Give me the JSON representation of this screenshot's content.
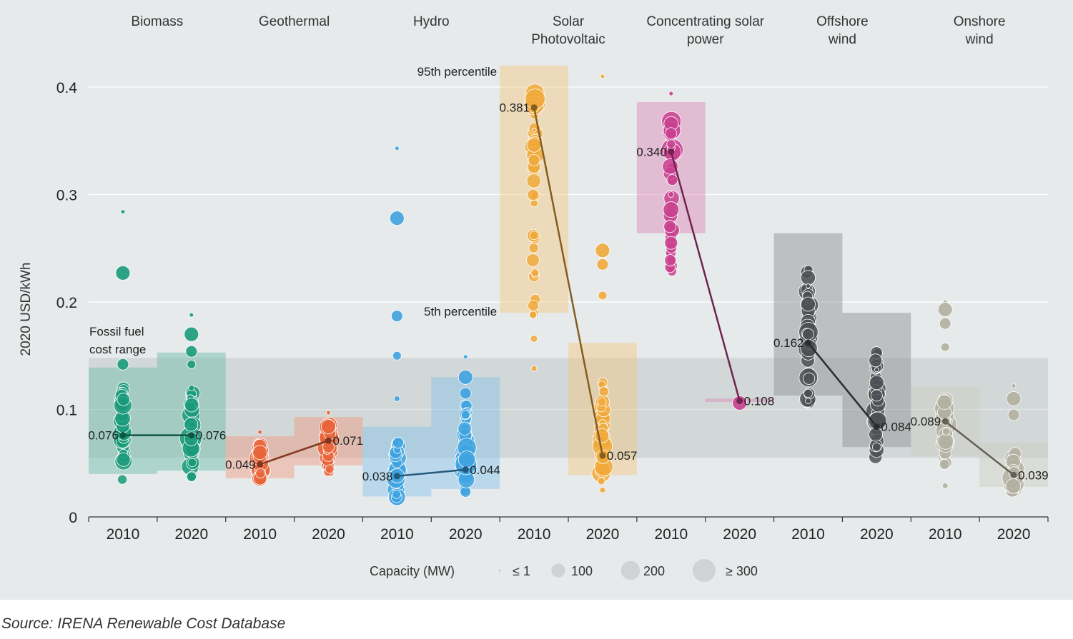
{
  "chart_data": {
    "type": "scatter",
    "ylabel": "2020 USD/kWh",
    "ylim": [
      0,
      0.4
    ],
    "yticks": [
      "0",
      "0.1",
      "0.2",
      "0.3",
      "0.4"
    ],
    "grid": true,
    "colors": {
      "biomass": "#1a9a7a",
      "geothermal": "#e8643a",
      "hydro": "#3fa3df",
      "solar_pv": "#f0a93a",
      "csp": "#c9418f",
      "offshore": "#4d5054",
      "onshore": "#b2b0a0",
      "background": "#e6eaeb"
    },
    "fossil_fuel_range": {
      "label": "Fossil fuel cost range",
      "range": [
        0.055,
        0.148
      ]
    },
    "annotations": {
      "p95": "95th percentile",
      "p5": "5th percentile"
    },
    "technologies": [
      {
        "id": "biomass",
        "name": "Biomass",
        "weighted_avg": [
          0.076,
          0.076
        ],
        "labels": [
          "0.076",
          "0.076"
        ],
        "band_2010": [
          0.04,
          0.139
        ],
        "band_2020": [
          0.043,
          0.153
        ],
        "outliers_2010": [
          0.284,
          0.227,
          0.142
        ],
        "outliers_2020": [
          0.188,
          0.17,
          0.154,
          0.142,
          0.12
        ]
      },
      {
        "id": "geothermal",
        "name": "Geothermal",
        "weighted_avg": [
          0.049,
          0.071
        ],
        "labels": [
          "0.049",
          "0.071"
        ],
        "band_2010": [
          0.036,
          0.075
        ],
        "band_2020": [
          0.048,
          0.093
        ],
        "outliers_2010": [
          0.079,
          0.06
        ],
        "outliers_2020": [
          0.097,
          0.084,
          0.065
        ]
      },
      {
        "id": "hydro",
        "name": "Hydro",
        "weighted_avg": [
          0.038,
          0.044
        ],
        "labels": [
          "0.038",
          "0.044"
        ],
        "band_2010": [
          0.019,
          0.084
        ],
        "band_2020": [
          0.026,
          0.13
        ],
        "outliers_2010": [
          0.343,
          0.278,
          0.187,
          0.15,
          0.11
        ],
        "outliers_2020": [
          0.149,
          0.13,
          0.115,
          0.095
        ]
      },
      {
        "id": "solar_pv",
        "name": "Solar Photovoltaic",
        "weighted_avg": [
          0.381,
          0.057
        ],
        "labels": [
          "0.381",
          "0.057"
        ],
        "band_2010": [
          0.19,
          0.42
        ],
        "band_2020": [
          0.039,
          0.162
        ],
        "outliers_2010": [
          0.36,
          0.346,
          0.332,
          0.262,
          0.138
        ],
        "outliers_2020": [
          0.41,
          0.248,
          0.235,
          0.206,
          0.025
        ]
      },
      {
        "id": "csp",
        "name": "Concentrating solar power",
        "weighted_avg": [
          0.34,
          0.108
        ],
        "labels": [
          "0.340",
          "0.108"
        ],
        "band_2010": [
          0.264,
          0.386
        ],
        "band_2020": [
          0.107,
          0.11
        ],
        "outliers_2010": [
          0.394,
          0.366,
          0.357,
          0.347,
          0.3,
          0.286,
          0.255
        ],
        "outliers_2020": [
          0.109,
          0.106
        ]
      },
      {
        "id": "offshore",
        "name": "Offshore wind",
        "weighted_avg": [
          0.162,
          0.084
        ],
        "labels": [
          "0.162",
          "0.084"
        ],
        "band_2010": [
          0.113,
          0.264
        ],
        "band_2020": [
          0.065,
          0.19
        ],
        "outliers_2010": [
          0.215,
          0.198,
          0.17,
          0.115,
          0.108
        ],
        "outliers_2020": [
          0.137,
          0.125,
          0.113,
          0.065
        ]
      },
      {
        "id": "onshore",
        "name": "Onshore wind",
        "weighted_avg": [
          0.089,
          0.039
        ],
        "labels": [
          "0.089",
          "0.039"
        ],
        "band_2010": [
          0.057,
          0.121
        ],
        "band_2020": [
          0.028,
          0.069
        ],
        "outliers_2010": [
          0.2,
          0.193,
          0.18,
          0.158,
          0.029
        ],
        "outliers_2020": [
          0.122,
          0.11,
          0.095
        ]
      }
    ],
    "years": [
      "2010",
      "2020"
    ],
    "legend": {
      "title": "Capacity (MW)",
      "items": [
        {
          "label": "≤ 1",
          "size": 1
        },
        {
          "label": "100",
          "size": 100
        },
        {
          "label": "200",
          "size": 200
        },
        {
          "label": "≥ 300",
          "size": 300
        }
      ]
    }
  },
  "source": "Source: IRENA Renewable Cost Database"
}
